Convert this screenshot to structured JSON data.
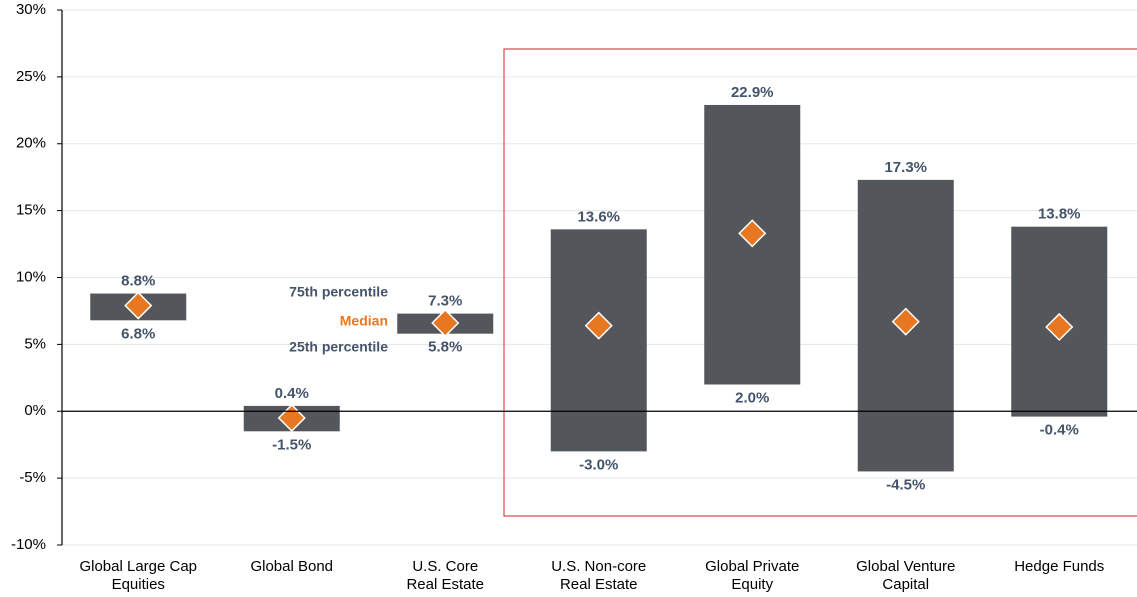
{
  "chart_data": {
    "type": "range-bar",
    "categories": [
      "Global Large Cap\nEquities",
      "Global Bond",
      "U.S. Core\nReal Estate",
      "U.S. Non-core\nReal Estate",
      "Global Private\nEquity",
      "Global Venture\nCapital",
      "Hedge Funds"
    ],
    "bar_color": "#53565a",
    "series": [
      {
        "name": "75th percentile",
        "color": "#44546a",
        "values": [
          8.8,
          0.4,
          7.3,
          13.6,
          22.9,
          17.3,
          13.8
        ],
        "value_labels": [
          "8.8%",
          "0.4%",
          "7.3%",
          "13.6%",
          "22.9%",
          "17.3%",
          "13.8%"
        ]
      },
      {
        "name": "Median",
        "color": "#e87722",
        "values": [
          7.9,
          -0.5,
          6.6,
          6.4,
          13.3,
          6.7,
          6.3
        ]
      },
      {
        "name": "25th percentile",
        "color": "#44546a",
        "values": [
          6.8,
          -1.5,
          5.8,
          -3.0,
          2.0,
          -4.5,
          -0.4
        ],
        "value_labels": [
          "6.8%",
          "-1.5%",
          "5.8%",
          "-3.0%",
          "2.0%",
          "-4.5%",
          "-0.4%"
        ]
      }
    ],
    "ylim": [
      -10,
      30
    ],
    "yticks": [
      {
        "value": -10,
        "label": "-10%"
      },
      {
        "value": -5,
        "label": "-5%"
      },
      {
        "value": 0,
        "label": "0%"
      },
      {
        "value": 5,
        "label": "5%"
      },
      {
        "value": 10,
        "label": "10%"
      },
      {
        "value": 15,
        "label": "15%"
      },
      {
        "value": 20,
        "label": "20%"
      },
      {
        "value": 25,
        "label": "25%"
      },
      {
        "value": 30,
        "label": "30%"
      }
    ],
    "grid": true
  }
}
